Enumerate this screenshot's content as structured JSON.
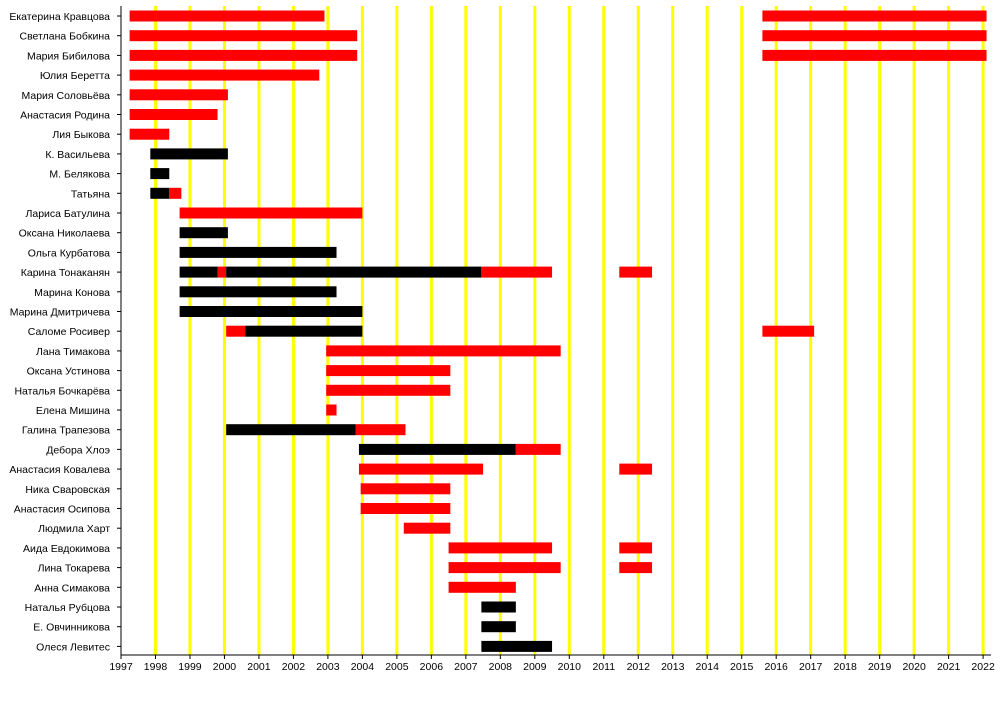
{
  "chart_data": {
    "type": "timeline",
    "title": "",
    "xlabel": "",
    "ylabel": "",
    "xlim": [
      1997,
      2022.2
    ],
    "grid": "vertical yearly lines",
    "legend": "none",
    "x_ticks": [
      "1997",
      "1998",
      "1999",
      "2000",
      "2001",
      "2002",
      "2003",
      "2004",
      "2005",
      "2006",
      "2007",
      "2008",
      "2009",
      "2010",
      "2011",
      "2012",
      "2013",
      "2014",
      "2015",
      "2016",
      "2017",
      "2018",
      "2019",
      "2020",
      "2021",
      "2022"
    ],
    "colors": {
      "red": "#ff0000",
      "black": "#000000",
      "grid": "#ffff00",
      "axis": "#000000"
    },
    "rows": [
      {
        "name": "Екатерина Кравцова",
        "segments": [
          {
            "start": 1997.25,
            "end": 2002.9,
            "color": "red"
          },
          {
            "start": 2015.6,
            "end": 2022.1,
            "color": "red"
          }
        ]
      },
      {
        "name": "Светлана Бобкина",
        "segments": [
          {
            "start": 1997.25,
            "end": 2003.85,
            "color": "red"
          },
          {
            "start": 2015.6,
            "end": 2022.1,
            "color": "red"
          }
        ]
      },
      {
        "name": "Мария Бибилова",
        "segments": [
          {
            "start": 1997.25,
            "end": 2003.85,
            "color": "red"
          },
          {
            "start": 2015.6,
            "end": 2022.1,
            "color": "red"
          }
        ]
      },
      {
        "name": "Юлия Беретта",
        "segments": [
          {
            "start": 1997.25,
            "end": 2002.75,
            "color": "red"
          }
        ]
      },
      {
        "name": "Мария Соловьёва",
        "segments": [
          {
            "start": 1997.25,
            "end": 2000.1,
            "color": "red"
          }
        ]
      },
      {
        "name": "Анастасия Родина",
        "segments": [
          {
            "start": 1997.25,
            "end": 1999.8,
            "color": "red"
          }
        ]
      },
      {
        "name": "Лия Быкова",
        "segments": [
          {
            "start": 1997.25,
            "end": 1998.4,
            "color": "red"
          }
        ]
      },
      {
        "name": "К. Васильева",
        "segments": [
          {
            "start": 1997.85,
            "end": 2000.1,
            "color": "black"
          }
        ]
      },
      {
        "name": "М. Белякова",
        "segments": [
          {
            "start": 1997.85,
            "end": 1998.4,
            "color": "black"
          }
        ]
      },
      {
        "name": "Татьяна",
        "segments": [
          {
            "start": 1997.85,
            "end": 1998.4,
            "color": "black"
          },
          {
            "start": 1998.4,
            "end": 1998.75,
            "color": "red"
          }
        ]
      },
      {
        "name": "Лариса Батулина",
        "segments": [
          {
            "start": 1998.7,
            "end": 2004.0,
            "color": "red"
          }
        ]
      },
      {
        "name": "Оксана Николаева",
        "segments": [
          {
            "start": 1998.7,
            "end": 2000.1,
            "color": "black"
          }
        ]
      },
      {
        "name": "Ольга Курбатова",
        "segments": [
          {
            "start": 1998.7,
            "end": 2003.25,
            "color": "black"
          }
        ]
      },
      {
        "name": "Карина Тонаканян",
        "segments": [
          {
            "start": 1998.7,
            "end": 1999.8,
            "color": "black"
          },
          {
            "start": 1999.8,
            "end": 2000.05,
            "color": "red"
          },
          {
            "start": 2000.05,
            "end": 2007.45,
            "color": "black"
          },
          {
            "start": 2007.45,
            "end": 2009.5,
            "color": "red"
          },
          {
            "start": 2011.45,
            "end": 2012.4,
            "color": "red"
          }
        ]
      },
      {
        "name": "Марина Конова",
        "segments": [
          {
            "start": 1998.7,
            "end": 2003.25,
            "color": "black"
          }
        ]
      },
      {
        "name": "Марина Дмитричева",
        "segments": [
          {
            "start": 1998.7,
            "end": 2004.0,
            "color": "black"
          }
        ]
      },
      {
        "name": "Саломе Росивер",
        "segments": [
          {
            "start": 2000.05,
            "end": 2000.6,
            "color": "red"
          },
          {
            "start": 2000.6,
            "end": 2004.0,
            "color": "black"
          },
          {
            "start": 2015.6,
            "end": 2017.1,
            "color": "red"
          }
        ]
      },
      {
        "name": "Лана Тимакова",
        "segments": [
          {
            "start": 2002.95,
            "end": 2009.75,
            "color": "red"
          }
        ]
      },
      {
        "name": "Оксана Устинова",
        "segments": [
          {
            "start": 2002.95,
            "end": 2006.55,
            "color": "red"
          }
        ]
      },
      {
        "name": "Наталья Бочкарёва",
        "segments": [
          {
            "start": 2002.95,
            "end": 2006.55,
            "color": "red"
          }
        ]
      },
      {
        "name": "Елена Мишина",
        "segments": [
          {
            "start": 2002.95,
            "end": 2003.25,
            "color": "red"
          }
        ]
      },
      {
        "name": "Галина Трапезова",
        "segments": [
          {
            "start": 2000.05,
            "end": 2003.8,
            "color": "black"
          },
          {
            "start": 2003.8,
            "end": 2005.25,
            "color": "red"
          }
        ]
      },
      {
        "name": "Дебора Хлоэ",
        "segments": [
          {
            "start": 2003.9,
            "end": 2008.45,
            "color": "black"
          },
          {
            "start": 2008.45,
            "end": 2009.75,
            "color": "red"
          }
        ]
      },
      {
        "name": "Анастасия Ковалева",
        "segments": [
          {
            "start": 2003.9,
            "end": 2007.5,
            "color": "red"
          },
          {
            "start": 2011.45,
            "end": 2012.4,
            "color": "red"
          }
        ]
      },
      {
        "name": "Ника Сваровская",
        "segments": [
          {
            "start": 2003.95,
            "end": 2006.55,
            "color": "red"
          }
        ]
      },
      {
        "name": "Анастасия Осипова",
        "segments": [
          {
            "start": 2003.95,
            "end": 2006.55,
            "color": "red"
          }
        ]
      },
      {
        "name": "Людмила Харт",
        "segments": [
          {
            "start": 2005.2,
            "end": 2006.55,
            "color": "red"
          }
        ]
      },
      {
        "name": "Аида Евдокимова",
        "segments": [
          {
            "start": 2006.5,
            "end": 2009.5,
            "color": "red"
          },
          {
            "start": 2011.45,
            "end": 2012.4,
            "color": "red"
          }
        ]
      },
      {
        "name": "Лина Токарева",
        "segments": [
          {
            "start": 2006.5,
            "end": 2009.75,
            "color": "red"
          },
          {
            "start": 2011.45,
            "end": 2012.4,
            "color": "red"
          }
        ]
      },
      {
        "name": "Анна Симакова",
        "segments": [
          {
            "start": 2006.5,
            "end": 2008.45,
            "color": "red"
          }
        ]
      },
      {
        "name": "Наталья Рубцова",
        "segments": [
          {
            "start": 2007.45,
            "end": 2008.45,
            "color": "black"
          }
        ]
      },
      {
        "name": "Е. Овчинникова",
        "segments": [
          {
            "start": 2007.45,
            "end": 2008.45,
            "color": "black"
          }
        ]
      },
      {
        "name": "Олеся Левитес",
        "segments": [
          {
            "start": 2007.45,
            "end": 2009.5,
            "color": "black"
          }
        ]
      }
    ]
  }
}
